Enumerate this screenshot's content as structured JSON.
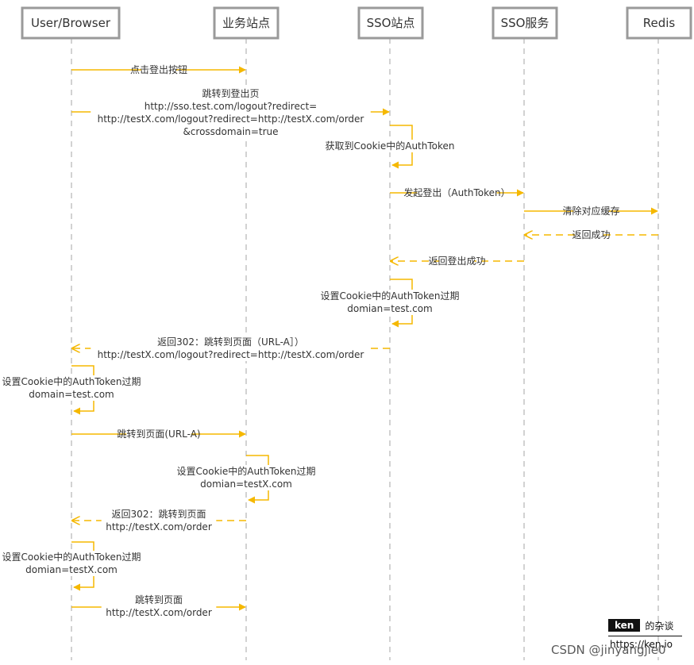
{
  "colors": {
    "arrow": "#f5b800",
    "lifeline": "#b5b5b5",
    "actor_border": "#9a9a9a",
    "text": "#333333"
  },
  "participants": [
    {
      "id": "browser",
      "label": "User/Browser"
    },
    {
      "id": "biz",
      "label": "业务站点"
    },
    {
      "id": "sso_site",
      "label": "SSO站点"
    },
    {
      "id": "sso_svc",
      "label": "SSO服务"
    },
    {
      "id": "redis",
      "label": "Redis"
    }
  ],
  "messages": [
    {
      "from": "browser",
      "to": "biz",
      "style": "solid",
      "lines": [
        "点击登出按钮"
      ]
    },
    {
      "from": "browser",
      "to": "sso_site",
      "style": "solid",
      "lines": [
        "跳转到登出页",
        "http://sso.test.com/logout?redirect=",
        "http://testX.com/logout?redirect=http://testX.com/order",
        "&crossdomain=true"
      ]
    },
    {
      "from": "sso_site",
      "to": "sso_site",
      "style": "self",
      "lines": [
        "获取到Cookie中的AuthToken"
      ]
    },
    {
      "from": "sso_site",
      "to": "sso_svc",
      "style": "solid",
      "lines": [
        "发起登出（AuthToken）"
      ]
    },
    {
      "from": "sso_svc",
      "to": "redis",
      "style": "solid",
      "lines": [
        "清除对应缓存"
      ]
    },
    {
      "from": "redis",
      "to": "sso_svc",
      "style": "dashed",
      "lines": [
        "返回成功"
      ]
    },
    {
      "from": "sso_svc",
      "to": "sso_site",
      "style": "dashed",
      "lines": [
        "返回登出成功"
      ]
    },
    {
      "from": "sso_site",
      "to": "sso_site",
      "style": "self",
      "lines": [
        "设置Cookie中的AuthToken过期",
        "domian=test.com"
      ]
    },
    {
      "from": "sso_site",
      "to": "browser",
      "style": "dashed",
      "lines": [
        "返回302：跳转到页面（URL-A］）",
        "http://testX.com/logout?redirect=http://testX.com/order"
      ]
    },
    {
      "from": "browser",
      "to": "browser",
      "style": "self",
      "lines": [
        "设置Cookie中的AuthToken过期",
        "domain=test.com"
      ]
    },
    {
      "from": "browser",
      "to": "biz",
      "style": "solid",
      "lines": [
        "跳转到页面(URL-A)"
      ]
    },
    {
      "from": "biz",
      "to": "biz",
      "style": "self",
      "lines": [
        "设置Cookie中的AuthToken过期",
        "domian=testX.com"
      ]
    },
    {
      "from": "biz",
      "to": "browser",
      "style": "dashed",
      "lines": [
        "返回302：跳转到页面",
        "http://testX.com/order"
      ]
    },
    {
      "from": "browser",
      "to": "browser",
      "style": "self",
      "lines": [
        "设置Cookie中的AuthToken过期",
        "domian=testX.com"
      ]
    },
    {
      "from": "browser",
      "to": "biz",
      "style": "solid",
      "lines": [
        "跳转到页面",
        "http://testX.com/order"
      ]
    }
  ],
  "watermark": {
    "brand": "ken",
    "brand_suffix": "的杂谈",
    "url": "https://ken.io",
    "csdn": "CSDN @jinyangjie0"
  }
}
